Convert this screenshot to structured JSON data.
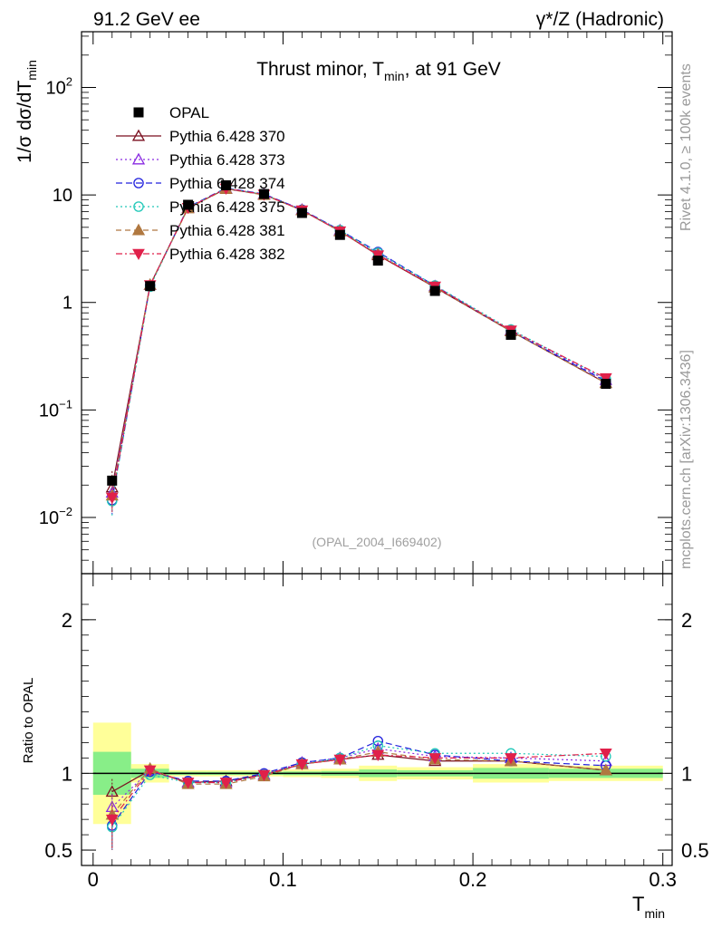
{
  "header": {
    "left_title": "91.2 GeV ee",
    "right_title": "γ*/Z (Hadronic)"
  },
  "side_labels": {
    "rivet": "Rivet 4.1.0, ≥ 100k events",
    "mcplots": "mcplots.cern.ch [arXiv:1306.3436]"
  },
  "chart_data": [
    {
      "type": "line",
      "panel": "main",
      "title_parts": {
        "main": "Thrust minor, T",
        "sub": "min",
        "tail": ", at 91 GeV"
      },
      "analysis_id": "(OPAL_2004_I669402)",
      "ylabel_parts": {
        "main": "1/σ  dσ/dT",
        "sub": "min"
      },
      "yscale": "log",
      "ylim": [
        0.003,
        330
      ],
      "xlim": [
        0,
        0.3
      ],
      "y_ticks": [
        {
          "value": 100,
          "base": "10",
          "exp": "2"
        },
        {
          "value": 10,
          "base": "10",
          "exp": ""
        },
        {
          "value": 1,
          "base": "1",
          "exp": ""
        },
        {
          "value": 0.1,
          "base": "10",
          "exp": "−1"
        },
        {
          "value": 0.01,
          "base": "10",
          "exp": "−2"
        }
      ],
      "x": [
        0.01,
        0.03,
        0.05,
        0.07,
        0.09,
        0.11,
        0.13,
        0.15,
        0.18,
        0.22,
        0.27
      ],
      "bin_edges": [
        0.0,
        0.02,
        0.04,
        0.06,
        0.08,
        0.1,
        0.12,
        0.14,
        0.16,
        0.2,
        0.24,
        0.3
      ],
      "data": {
        "name": "OPAL",
        "color": "#000000",
        "values": [
          0.022,
          1.42,
          8.1,
          12.3,
          10.2,
          6.8,
          4.25,
          2.45,
          1.28,
          0.5,
          0.175
        ]
      },
      "series": [
        {
          "name": "Pythia 6.428 370",
          "color": "#7a0f1f",
          "dash": "",
          "marker": "triangle-open",
          "values": [
            0.019,
            1.45,
            7.6,
            11.4,
            10.1,
            7.2,
            4.6,
            2.75,
            1.38,
            0.54,
            0.178
          ]
        },
        {
          "name": "Pythia 6.428 373",
          "color": "#8a2be2",
          "dash": "2,3",
          "marker": "triangle-open",
          "values": [
            0.017,
            1.45,
            7.6,
            11.5,
            10.1,
            7.3,
            4.7,
            2.85,
            1.42,
            0.55,
            0.19
          ]
        },
        {
          "name": "Pythia 6.428 374",
          "color": "#2222dd",
          "dash": "7,4",
          "marker": "circle-open",
          "values": [
            0.0145,
            1.44,
            7.7,
            11.6,
            10.2,
            7.3,
            4.7,
            2.95,
            1.43,
            0.54,
            0.185
          ]
        },
        {
          "name": "Pythia 6.428 375",
          "color": "#20c8b8",
          "dash": "2,3",
          "marker": "circle-open",
          "values": [
            0.0142,
            1.4,
            7.6,
            11.5,
            10.1,
            7.2,
            4.7,
            2.9,
            1.44,
            0.56,
            0.195
          ]
        },
        {
          "name": "Pythia 6.428 381",
          "color": "#b07840",
          "dash": "6,4",
          "marker": "triangle-filled",
          "values": [
            0.016,
            1.46,
            7.5,
            11.4,
            10.0,
            7.2,
            4.6,
            2.8,
            1.39,
            0.54,
            0.178
          ]
        },
        {
          "name": "Pythia 6.428 382",
          "color": "#e0204a",
          "dash": "7,3,2,3",
          "marker": "triangle-down-filled",
          "values": [
            0.0153,
            1.45,
            7.6,
            11.5,
            10.1,
            7.2,
            4.6,
            2.75,
            1.41,
            0.55,
            0.198
          ]
        }
      ]
    },
    {
      "type": "line",
      "panel": "ratio",
      "ylabel": "Ratio to OPAL",
      "ylim": [
        0.4,
        2.3
      ],
      "xlim": [
        0,
        0.3
      ],
      "y_ticks": [
        0.5,
        1,
        2
      ],
      "x_ticks": [
        0,
        0.1,
        0.2,
        0.3
      ],
      "x_tick_labels": [
        "0",
        "0.1",
        "0.2",
        "0.3"
      ],
      "xlabel_parts": {
        "main": "T",
        "sub": "min"
      },
      "data_band_inner": [
        0.14,
        0.03,
        0.01,
        0.01,
        0.01,
        0.012,
        0.015,
        0.025,
        0.02,
        0.035,
        0.03
      ],
      "data_band_outer": [
        0.33,
        0.06,
        0.02,
        0.02,
        0.02,
        0.025,
        0.03,
        0.05,
        0.04,
        0.06,
        0.05
      ],
      "series": [
        {
          "name": "Pythia 6.428 370",
          "values": [
            0.88,
            1.02,
            0.94,
            0.95,
            0.99,
            1.06,
            1.09,
            1.12,
            1.08,
            1.08,
            1.02
          ]
        },
        {
          "name": "Pythia 6.428 373",
          "values": [
            0.78,
            1.02,
            0.94,
            0.94,
            0.99,
            1.07,
            1.1,
            1.16,
            1.11,
            1.1,
            1.08
          ]
        },
        {
          "name": "Pythia 6.428 374",
          "values": [
            0.66,
            1.01,
            0.95,
            0.95,
            1.0,
            1.07,
            1.1,
            1.21,
            1.12,
            1.08,
            1.05
          ]
        },
        {
          "name": "Pythia 6.428 375",
          "values": [
            0.65,
            0.99,
            0.94,
            0.94,
            0.99,
            1.06,
            1.1,
            1.18,
            1.13,
            1.13,
            1.11
          ]
        },
        {
          "name": "Pythia 6.428 381",
          "values": [
            0.73,
            1.03,
            0.93,
            0.93,
            0.98,
            1.06,
            1.09,
            1.14,
            1.09,
            1.08,
            1.02
          ]
        },
        {
          "name": "Pythia 6.428 382",
          "values": [
            0.7,
            1.02,
            0.94,
            0.94,
            0.99,
            1.06,
            1.09,
            1.12,
            1.1,
            1.1,
            1.13
          ]
        }
      ]
    }
  ]
}
